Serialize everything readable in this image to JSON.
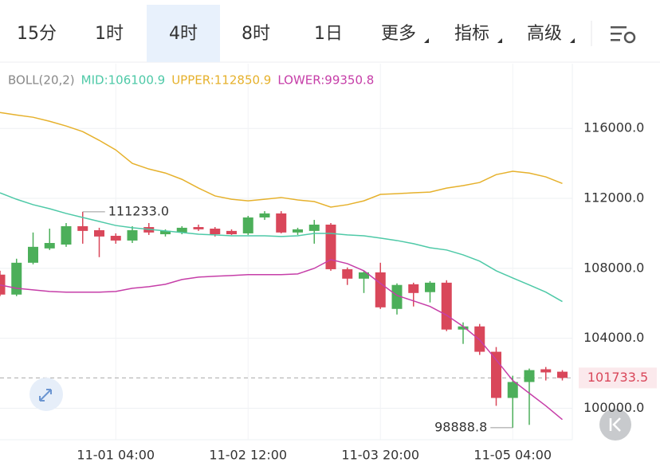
{
  "tabs": [
    "15分",
    "1时",
    "4时",
    "8时",
    "1日",
    "更多",
    "指标",
    "高级"
  ],
  "selected_tab": 2,
  "chart_data": {
    "type": "candlestick",
    "indicator": {
      "name": "BOLL(20,2)",
      "labels": [
        "MID:106100.9",
        "UPPER:112850.9",
        "LOWER:99350.8"
      ]
    },
    "categories": [
      null,
      null,
      null,
      null,
      null,
      null,
      null,
      "11-01 04:00",
      null,
      null,
      null,
      null,
      null,
      null,
      null,
      "11-02 12:00",
      null,
      null,
      null,
      null,
      null,
      null,
      null,
      "11-03 20:00",
      null,
      null,
      null,
      null,
      null,
      null,
      null,
      "11-05 04:00",
      null,
      null,
      null
    ],
    "open": [
      107640,
      106500,
      108320,
      109140,
      109360,
      110410,
      110180,
      109860,
      109590,
      110360,
      109950,
      110050,
      110360,
      110270,
      110140,
      110000,
      110910,
      111140,
      110050,
      110140,
      110500,
      107950,
      107410,
      107770,
      105680,
      107090,
      106640,
      107180,
      104500,
      104680,
      103230,
      100590,
      101500,
      102230,
      102090
    ],
    "high": [
      107860,
      108550,
      110050,
      110270,
      110590,
      111233,
      110320,
      110000,
      110410,
      110590,
      110230,
      110410,
      110500,
      110360,
      110230,
      111000,
      111270,
      111270,
      110320,
      110770,
      110590,
      108050,
      107860,
      108320,
      107140,
      107180,
      107270,
      107320,
      104910,
      104820,
      103500,
      101860,
      102270,
      102360,
      102180
    ],
    "low": [
      106410,
      106410,
      108230,
      109050,
      109230,
      109410,
      108640,
      109410,
      109450,
      109910,
      109820,
      109950,
      110140,
      109820,
      109910,
      109910,
      110770,
      110000,
      109910,
      109410,
      107860,
      107050,
      106590,
      105680,
      105360,
      105820,
      106050,
      104410,
      103680,
      103050,
      100140,
      98888.8,
      99050,
      101590,
      101590
    ],
    "close": [
      106500,
      108320,
      109230,
      109450,
      110410,
      110140,
      109820,
      109590,
      110180,
      110050,
      110140,
      110320,
      110230,
      109950,
      109950,
      110910,
      111140,
      110050,
      110230,
      110500,
      107950,
      107410,
      107770,
      105770,
      107050,
      106590,
      107180,
      104500,
      104680,
      103230,
      100590,
      101500,
      102180,
      102050,
      101733.5
    ],
    "up_color": "#4caf5a",
    "down_color": "#d9475a",
    "series": [
      {
        "color": "#4ec9a7",
        "values": [
          112320,
          111950,
          111640,
          111410,
          111140,
          110910,
          110680,
          110450,
          110320,
          110230,
          110140,
          110050,
          109950,
          109910,
          109860,
          109860,
          109860,
          109820,
          109860,
          110000,
          110000,
          109910,
          109860,
          109730,
          109590,
          109410,
          109180,
          109050,
          108770,
          108410,
          107860,
          107450,
          107050,
          106640,
          106100.9
        ]
      },
      {
        "color": "#e6b12c",
        "values": [
          116910,
          116770,
          116640,
          116410,
          116140,
          115820,
          115320,
          114770,
          114000,
          113680,
          113450,
          113090,
          112590,
          112140,
          111950,
          111860,
          111950,
          112050,
          111910,
          111820,
          111500,
          111640,
          111860,
          112230,
          112270,
          112320,
          112360,
          112590,
          112730,
          112910,
          113360,
          113550,
          113450,
          113230,
          112850.9
        ]
      },
      {
        "color": "#c63ea8",
        "values": [
          107050,
          106860,
          106770,
          106680,
          106640,
          106640,
          106640,
          106680,
          106860,
          106950,
          107090,
          107360,
          107500,
          107550,
          107590,
          107640,
          107640,
          107640,
          107680,
          108000,
          108500,
          108270,
          107860,
          107140,
          106450,
          106140,
          105820,
          105320,
          104680,
          103910,
          102770,
          101590,
          100860,
          100140,
          99350.8
        ]
      }
    ],
    "annotations": [
      {
        "value": 111233,
        "label": "111233.0"
      },
      {
        "value": 98888.8,
        "label": "98888.8"
      }
    ],
    "last_price": 101733.5,
    "ylim": [
      98200,
      119700
    ],
    "yticks": [
      {
        "value": 100000,
        "label": "100000.0"
      },
      {
        "value": 104000,
        "label": "104000.0"
      },
      {
        "value": 108000,
        "label": "108000.0"
      },
      {
        "value": 112000,
        "label": "112000.0"
      },
      {
        "value": 116000,
        "label": "116000.0"
      }
    ],
    "grid": true
  }
}
